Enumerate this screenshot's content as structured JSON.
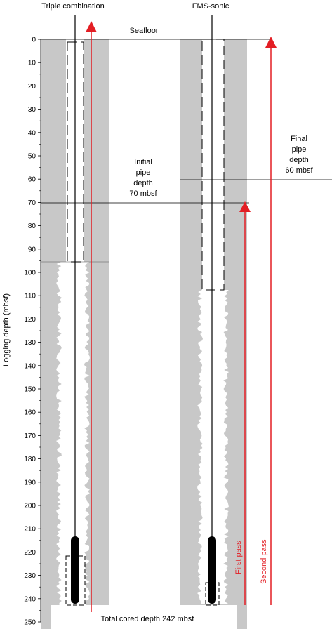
{
  "titles": {
    "triple_combination": "Triple combination",
    "fms_sonic": "FMS-sonic"
  },
  "seafloor_label": "Seafloor",
  "axis": {
    "label": "Logging depth (mbsf)",
    "min": 0,
    "max": 250,
    "step": 10
  },
  "initial_pipe": {
    "lines": [
      "Initial",
      "pipe",
      "depth",
      "70 mbsf"
    ],
    "depth": 70
  },
  "final_pipe": {
    "lines": [
      "Final",
      "pipe",
      "depth",
      "60 mbsf"
    ],
    "depth": 60
  },
  "total_depth": {
    "label": "Total cored depth 242 mbsf",
    "depth": 242
  },
  "passes": {
    "first": "First pass",
    "second": "Second pass"
  },
  "colors": {
    "borehole": "#c8c8c8",
    "pass_arrow": "#e31e24",
    "line": "#000000"
  }
}
